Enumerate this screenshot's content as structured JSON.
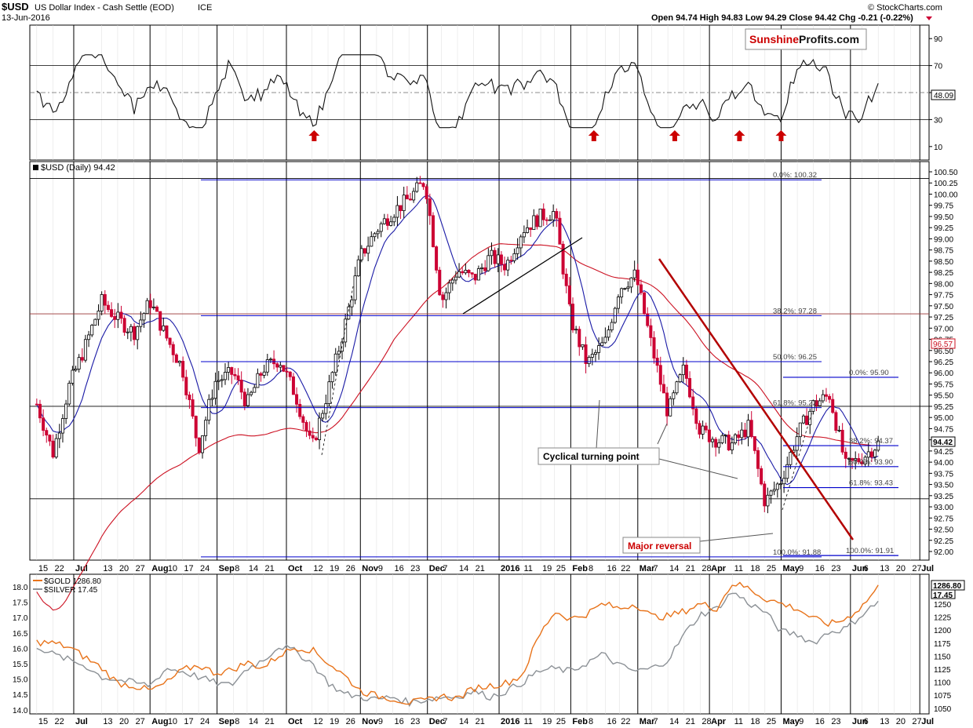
{
  "header": {
    "symbol": "$USD",
    "name": "US Dollar Index - Cash Settle (EOD)",
    "exchange": "ICE",
    "date": "13-Jun-2016",
    "ohlc": "Open 94.74  High 94.83  Low 94.29  Close 94.42  Chg -0.21 (-0.22%)",
    "credit": "© StockCharts.com"
  },
  "watermark": {
    "part1": "Sunshine",
    "part2": "Profits.com"
  },
  "rsi_panel": {
    "ticks": [
      "90",
      "70",
      "50",
      "30",
      "10"
    ],
    "current_label": "48.09",
    "arrow_color": "#cc0000"
  },
  "price_panel": {
    "legend": "$USD (Daily) 94.42",
    "ticks": [
      "100.50",
      "100.25",
      "100.00",
      "99.75",
      "99.50",
      "99.25",
      "99.00",
      "98.75",
      "98.50",
      "98.25",
      "98.00",
      "97.75",
      "97.50",
      "97.25",
      "97.00",
      "96.75",
      "96.50",
      "96.25",
      "96.00",
      "95.75",
      "95.50",
      "95.25",
      "95.00",
      "94.75",
      "94.50",
      "94.25",
      "94.00",
      "93.75",
      "93.50",
      "93.25",
      "93.00",
      "92.75",
      "92.50",
      "92.25",
      "92.00"
    ],
    "current_label": "94.42",
    "ma200_label": "96.57",
    "fib_labels": [
      "0.0%: 100.32",
      "38.2%: 97.28",
      "50.0%: 96.25",
      "61.8%: 95.22",
      "100.0%: 91.88",
      "0.0%: 95.90",
      "38.2%: 94.37",
      "50.0%: 93.90",
      "61.8%: 93.43",
      "100.0%: 91.91"
    ],
    "annotations": {
      "cyclical": "Cyclical turning point",
      "reversal": "Major reversal"
    },
    "colors": {
      "bull": "#000000",
      "bear": "#cc0033",
      "ma50": "#1a1aa6",
      "ma200": "#cc1122",
      "trend": "#b30000",
      "fib": "#0000cc"
    }
  },
  "x_axis": {
    "labels": [
      "15",
      "22",
      "Jul",
      "13",
      "20",
      "27",
      "Aug",
      "10",
      "17",
      "24",
      "Sep",
      "8",
      "14",
      "21",
      "Oct",
      "12",
      "19",
      "26",
      "Nov",
      "9",
      "16",
      "23",
      "Dec",
      "7",
      "14",
      "21",
      "2016",
      "11",
      "19",
      "25",
      "Feb",
      "8",
      "16",
      "22",
      "Mar",
      "7",
      "14",
      "21",
      "28",
      "Apr",
      "11",
      "18",
      "25",
      "May",
      "9",
      "16",
      "23",
      "Jun",
      "6",
      "13",
      "20",
      "27",
      "Jul"
    ]
  },
  "metals_panel": {
    "legend_gold": "$GOLD 1286.80",
    "legend_silver": "$SILVER 17.45",
    "left_ticks": [
      "18.0",
      "17.5",
      "17.0",
      "16.5",
      "16.0",
      "15.5",
      "15.0",
      "14.5",
      "14.0"
    ],
    "right_ticks": [
      "1250",
      "1225",
      "1200",
      "1175",
      "1150",
      "1125",
      "1100",
      "1075",
      "1050"
    ],
    "gold_label": "1286.80",
    "silver_label": "17.45",
    "colors": {
      "gold": "#e8731a",
      "silver": "#8c9196"
    }
  },
  "chart_data": [
    {
      "type": "line",
      "title": "RSI",
      "ylim": [
        0,
        100
      ],
      "reference_levels": [
        70,
        50,
        30
      ],
      "last_value": 48.09,
      "signal_arrows_dates": [
        "2015-10-13",
        "2016-02-11",
        "2016-03-17",
        "2016-04-14",
        "2016-05-02"
      ]
    },
    {
      "type": "candlestick",
      "title": "$USD (Daily) 94.42",
      "ylim": [
        92.0,
        100.6
      ],
      "last": {
        "open": 94.74,
        "high": 94.83,
        "low": 94.29,
        "close": 94.42,
        "change": -0.21,
        "change_pct": -0.22
      },
      "ma200_last": 96.57,
      "fibonacci_levels": {
        "100.32": "0.0%",
        "97.28": "38.2%",
        "96.25": "50.0%",
        "95.22": "61.8%",
        "91.88": "100.0%"
      },
      "fibonacci_levels_short": {
        "95.90": "0.0%",
        "94.37": "38.2%",
        "93.90": "50.0%",
        "93.43": "61.8%",
        "91.91": "100.0%"
      },
      "close_path": [
        [
          "2015-06-15",
          95.3
        ],
        [
          "2015-06-22",
          94.2
        ],
        [
          "2015-06-29",
          95.7
        ],
        [
          "2015-07-06",
          96.6
        ],
        [
          "2015-07-13",
          97.6
        ],
        [
          "2015-07-20",
          97.2
        ],
        [
          "2015-07-27",
          96.9
        ],
        [
          "2015-08-03",
          97.6
        ],
        [
          "2015-08-10",
          96.8
        ],
        [
          "2015-08-17",
          96.1
        ],
        [
          "2015-08-24",
          94.3
        ],
        [
          "2015-08-31",
          95.8
        ],
        [
          "2015-09-08",
          96.0
        ],
        [
          "2015-09-14",
          95.3
        ],
        [
          "2015-09-21",
          96.1
        ],
        [
          "2015-09-28",
          96.3
        ],
        [
          "2015-10-05",
          95.5
        ],
        [
          "2015-10-12",
          94.3
        ],
        [
          "2015-10-19",
          95.6
        ],
        [
          "2015-10-26",
          97.0
        ],
        [
          "2015-11-02",
          98.6
        ],
        [
          "2015-11-09",
          99.2
        ],
        [
          "2015-11-16",
          99.6
        ],
        [
          "2015-11-23",
          99.9
        ],
        [
          "2015-11-30",
          100.3
        ],
        [
          "2015-12-07",
          97.6
        ],
        [
          "2015-12-14",
          98.3
        ],
        [
          "2015-12-21",
          98.1
        ],
        [
          "2015-12-28",
          98.6
        ],
        [
          "2016-01-04",
          98.4
        ],
        [
          "2016-01-11",
          99.2
        ],
        [
          "2016-01-19",
          99.5
        ],
        [
          "2016-01-25",
          99.6
        ],
        [
          "2016-02-01",
          97.2
        ],
        [
          "2016-02-08",
          96.2
        ],
        [
          "2016-02-16",
          96.7
        ],
        [
          "2016-02-22",
          97.9
        ],
        [
          "2016-02-29",
          98.2
        ],
        [
          "2016-03-07",
          96.6
        ],
        [
          "2016-03-14",
          95.1
        ],
        [
          "2016-03-21",
          96.1
        ],
        [
          "2016-03-28",
          94.7
        ],
        [
          "2016-04-04",
          94.5
        ],
        [
          "2016-04-11",
          94.4
        ],
        [
          "2016-04-18",
          94.8
        ],
        [
          "2016-04-25",
          93.1
        ],
        [
          "2016-05-02",
          93.6
        ],
        [
          "2016-05-09",
          94.6
        ],
        [
          "2016-05-16",
          95.3
        ],
        [
          "2016-05-23",
          95.5
        ],
        [
          "2016-05-30",
          93.9
        ],
        [
          "2016-06-06",
          94.1
        ],
        [
          "2016-06-13",
          94.42
        ]
      ]
    },
    {
      "type": "line",
      "title": "$GOLD / $SILVER",
      "series": [
        {
          "name": "$GOLD 1286.80",
          "axis": "right",
          "ylim": [
            1040,
            1300
          ],
          "last": 1286.8,
          "values": [
            1180,
            1178,
            1170,
            1150,
            1130,
            1100,
            1095,
            1085,
            1100,
            1125,
            1135,
            1120,
            1125,
            1140,
            1130,
            1155,
            1170,
            1165,
            1140,
            1115,
            1085,
            1075,
            1070,
            1062,
            1065,
            1075,
            1070,
            1090,
            1095,
            1100,
            1115,
            1190,
            1240,
            1225,
            1235,
            1255,
            1245,
            1255,
            1230,
            1230,
            1240,
            1255,
            1245,
            1295,
            1285,
            1265,
            1255,
            1245,
            1225,
            1215,
            1225,
            1250,
            1286.8
          ]
        },
        {
          "name": "$SILVER 17.45",
          "axis": "left",
          "ylim": [
            13.5,
            18.2
          ],
          "last": 17.45,
          "values": [
            15.9,
            15.6,
            15.4,
            15.2,
            14.8,
            14.7,
            14.6,
            14.5,
            15.1,
            15.0,
            14.8,
            14.6,
            14.5,
            15.1,
            15.4,
            15.9,
            15.7,
            15.3,
            14.6,
            14.2,
            14.1,
            14.0,
            14.1,
            13.9,
            14.0,
            14.1,
            14.1,
            14.3,
            14.1,
            14.3,
            14.6,
            15.0,
            15.1,
            15.0,
            15.3,
            15.6,
            15.2,
            15.0,
            15.1,
            15.4,
            16.3,
            17.0,
            17.2,
            17.8,
            17.4,
            17.1,
            16.4,
            16.3,
            16.0,
            16.4,
            16.5,
            17.0,
            17.45
          ]
        }
      ]
    }
  ]
}
